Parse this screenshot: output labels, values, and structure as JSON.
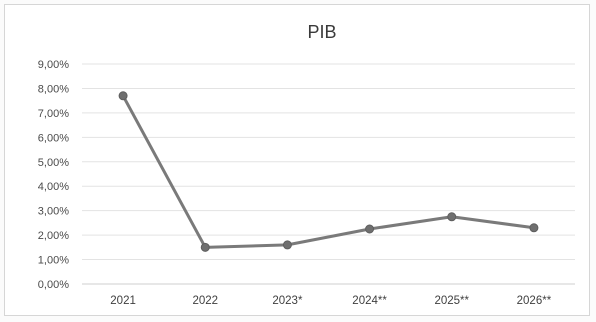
{
  "chart_data": {
    "type": "line",
    "title": "PIB",
    "categories": [
      "2021",
      "2022",
      "2023*",
      "2024**",
      "2025**",
      "2026**"
    ],
    "series": [
      {
        "values": [
          7.7,
          1.5,
          1.6,
          2.25,
          2.75,
          2.3
        ]
      }
    ],
    "ylim": [
      0,
      9
    ],
    "yticks": [
      "0,00%",
      "1,00%",
      "2,00%",
      "3,00%",
      "4,00%",
      "5,00%",
      "6,00%",
      "7,00%",
      "8,00%",
      "9,00%"
    ],
    "xlabel": "",
    "ylabel": "",
    "grid": true,
    "legend": "none",
    "colors": {
      "line": "#7a7a7a",
      "marker": "#6f6f6f"
    }
  }
}
